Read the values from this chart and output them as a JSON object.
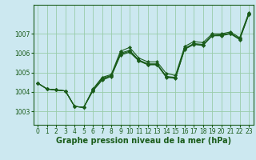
{
  "title": "Graphe pression niveau de la mer (hPa)",
  "background_color": "#cce8f0",
  "grid_color": "#99ccaa",
  "line_color": "#1a5c1a",
  "marker_color": "#1a5c1a",
  "xlim": [
    -0.5,
    23.5
  ],
  "ylim": [
    1002.3,
    1008.5
  ],
  "yticks": [
    1003,
    1004,
    1005,
    1006,
    1007
  ],
  "xticks": [
    0,
    1,
    2,
    3,
    4,
    5,
    6,
    7,
    8,
    9,
    10,
    11,
    12,
    13,
    14,
    15,
    16,
    17,
    18,
    19,
    20,
    21,
    22,
    23
  ],
  "series": [
    [
      1004.45,
      1004.15,
      1004.1,
      1004.05,
      1003.25,
      1003.2,
      1004.15,
      1004.75,
      1004.9,
      1006.1,
      1006.3,
      1005.75,
      1005.55,
      1005.55,
      1004.95,
      1004.85,
      1006.35,
      1006.6,
      1006.55,
      1007.0,
      1007.0,
      1007.1,
      1006.8,
      1008.1
    ],
    [
      1004.45,
      1004.15,
      1004.1,
      1004.05,
      1003.25,
      1003.2,
      1004.05,
      1004.6,
      1004.8,
      1005.9,
      1006.05,
      1005.6,
      1005.4,
      1005.4,
      1004.75,
      1004.7,
      1006.2,
      1006.45,
      1006.4,
      1006.9,
      1006.9,
      1007.0,
      1006.7,
      1008.0
    ],
    [
      1004.45,
      1004.15,
      1004.1,
      1004.05,
      1003.25,
      1003.2,
      1004.1,
      1004.7,
      1004.85,
      1006.0,
      1006.15,
      1005.65,
      1005.45,
      1005.45,
      1004.8,
      1004.75,
      1006.25,
      1006.5,
      1006.45,
      1006.92,
      1006.95,
      1007.03,
      1006.75,
      1008.05
    ],
    [
      1004.45,
      1004.15,
      1004.1,
      1004.05,
      1003.25,
      1003.2,
      1004.08,
      1004.65,
      1004.82,
      1005.95,
      1006.1,
      1005.62,
      1005.42,
      1005.42,
      1004.77,
      1004.72,
      1006.22,
      1006.47,
      1006.42,
      1006.91,
      1006.93,
      1007.02,
      1006.73,
      1008.02
    ]
  ],
  "tick_fontsize": 5.5,
  "xlabel_fontsize": 7.0,
  "linewidth": 0.8,
  "markersize": 2.2
}
